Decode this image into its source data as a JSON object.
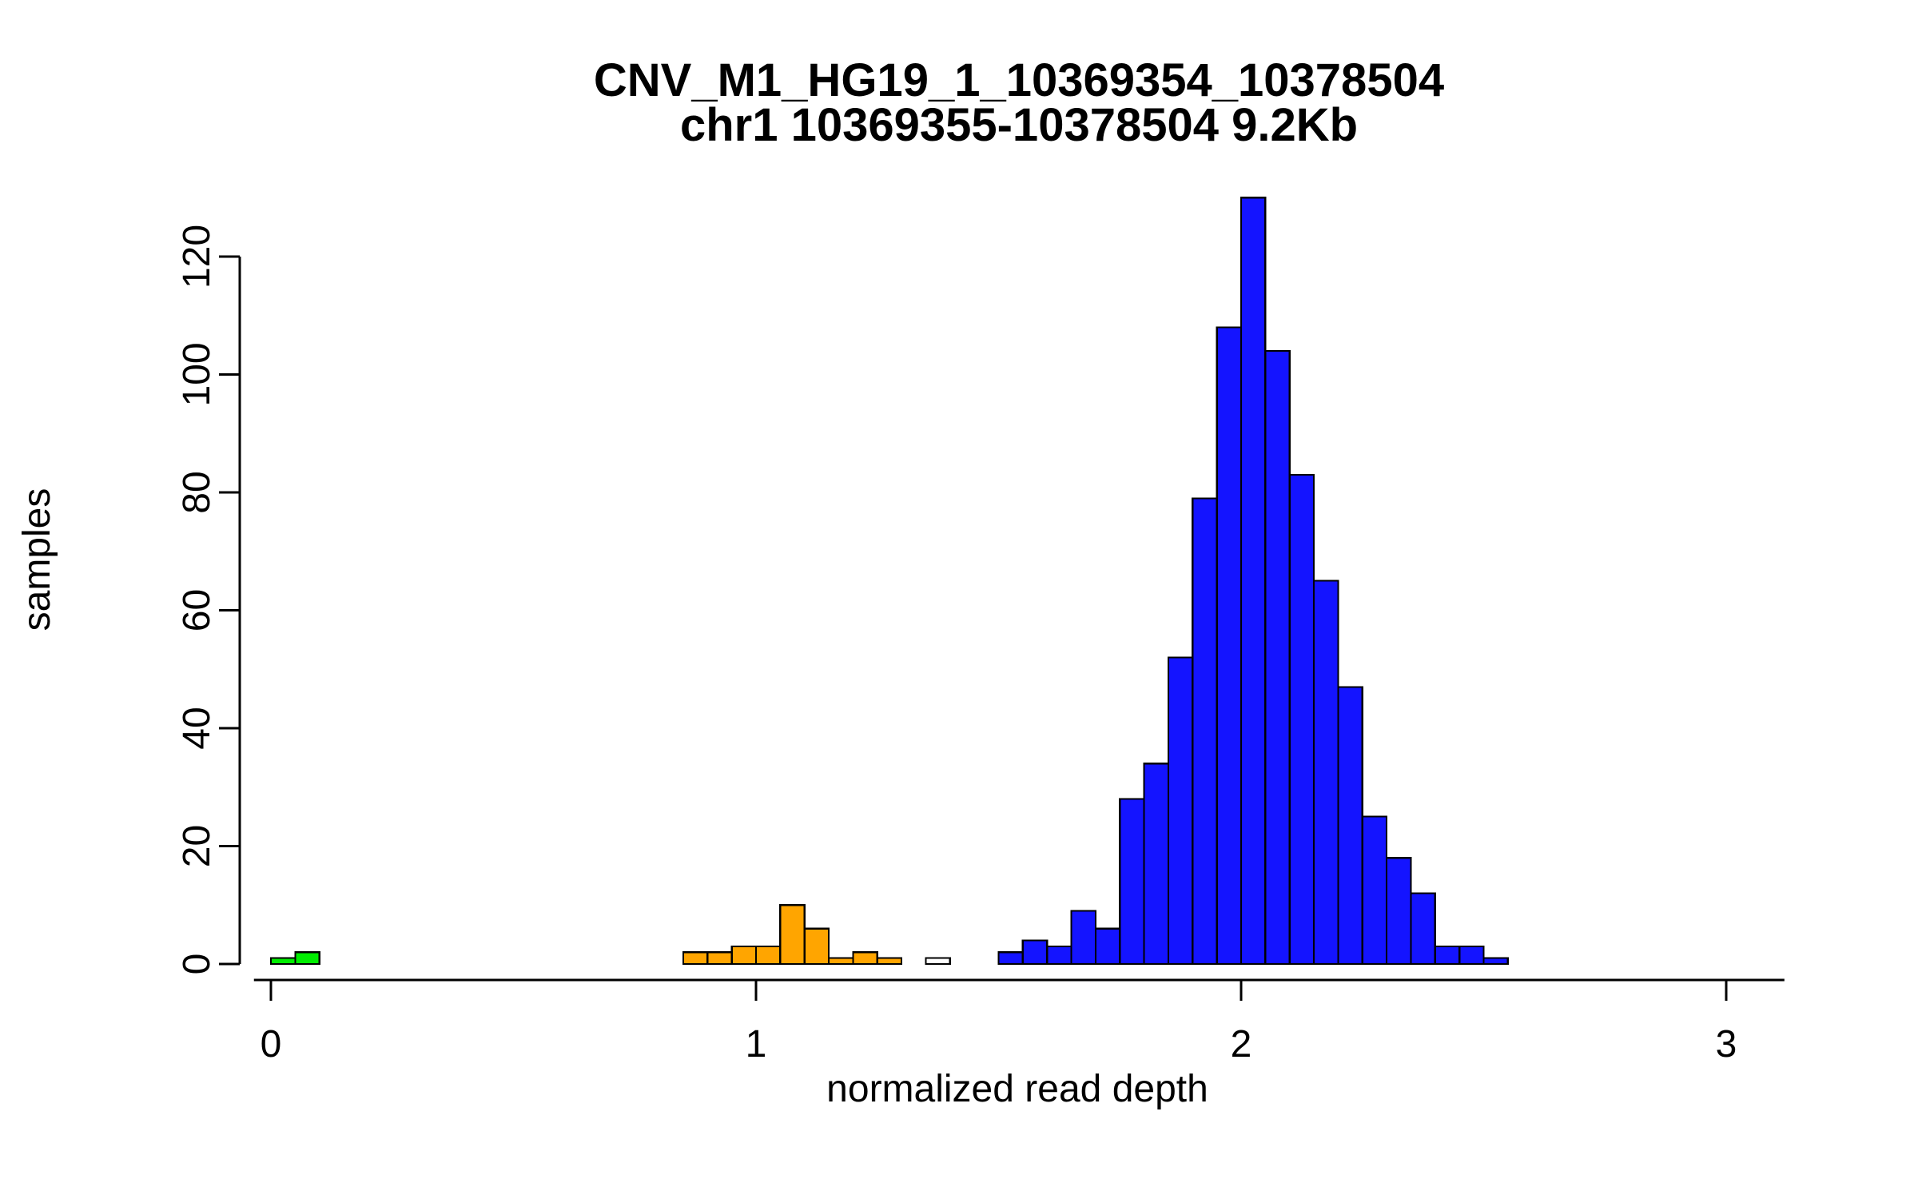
{
  "page": {
    "background": "#ffffff"
  },
  "chart_data": {
    "type": "bar",
    "title": "CNV_M1_HG19_1_10369354_10378504",
    "subtitle": "chr1 10369355-10378504 9.2Kb",
    "xlabel": "normalized read depth",
    "ylabel": "samples",
    "xlim": [
      -0.05,
      3.12
    ],
    "ylim": [
      0,
      130
    ],
    "x_ticks": [
      0,
      1,
      2,
      3
    ],
    "y_ticks": [
      0,
      20,
      40,
      60,
      80,
      100,
      120
    ],
    "bin_width": 0.05,
    "grid": false,
    "legend": "none",
    "colors": {
      "green": "#00EE00",
      "orange": "#FFA500",
      "blue": "#1414FF",
      "white": "#FFFFFF",
      "axis": "#000000",
      "bar_stroke": "#000000"
    },
    "bars": [
      {
        "x": 0.0,
        "height": 1,
        "color": "green"
      },
      {
        "x": 0.05,
        "height": 2,
        "color": "green"
      },
      {
        "x": 0.85,
        "height": 2,
        "color": "orange"
      },
      {
        "x": 0.9,
        "height": 2,
        "color": "orange"
      },
      {
        "x": 0.95,
        "height": 3,
        "color": "orange"
      },
      {
        "x": 1.0,
        "height": 3,
        "color": "orange"
      },
      {
        "x": 1.05,
        "height": 10,
        "color": "orange"
      },
      {
        "x": 1.1,
        "height": 6,
        "color": "orange"
      },
      {
        "x": 1.15,
        "height": 1,
        "color": "orange"
      },
      {
        "x": 1.2,
        "height": 2,
        "color": "orange"
      },
      {
        "x": 1.25,
        "height": 1,
        "color": "orange"
      },
      {
        "x": 1.35,
        "height": 1,
        "color": "white"
      },
      {
        "x": 1.5,
        "height": 2,
        "color": "blue"
      },
      {
        "x": 1.55,
        "height": 4,
        "color": "blue"
      },
      {
        "x": 1.6,
        "height": 3,
        "color": "blue"
      },
      {
        "x": 1.65,
        "height": 9,
        "color": "blue"
      },
      {
        "x": 1.7,
        "height": 6,
        "color": "blue"
      },
      {
        "x": 1.75,
        "height": 28,
        "color": "blue"
      },
      {
        "x": 1.8,
        "height": 34,
        "color": "blue"
      },
      {
        "x": 1.85,
        "height": 52,
        "color": "blue"
      },
      {
        "x": 1.9,
        "height": 79,
        "color": "blue"
      },
      {
        "x": 1.95,
        "height": 108,
        "color": "blue"
      },
      {
        "x": 2.0,
        "height": 130,
        "color": "blue"
      },
      {
        "x": 2.05,
        "height": 104,
        "color": "blue"
      },
      {
        "x": 2.1,
        "height": 83,
        "color": "blue"
      },
      {
        "x": 2.15,
        "height": 65,
        "color": "blue"
      },
      {
        "x": 2.2,
        "height": 47,
        "color": "blue"
      },
      {
        "x": 2.25,
        "height": 25,
        "color": "blue"
      },
      {
        "x": 2.3,
        "height": 18,
        "color": "blue"
      },
      {
        "x": 2.35,
        "height": 12,
        "color": "blue"
      },
      {
        "x": 2.4,
        "height": 3,
        "color": "blue"
      },
      {
        "x": 2.45,
        "height": 3,
        "color": "blue"
      },
      {
        "x": 2.5,
        "height": 1,
        "color": "blue"
      }
    ]
  }
}
